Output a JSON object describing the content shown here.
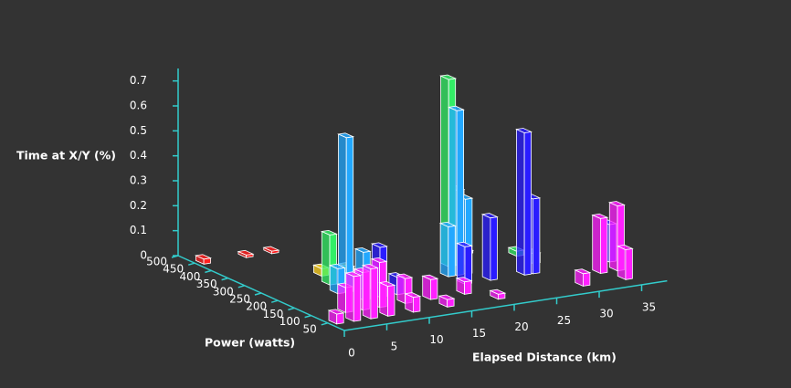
{
  "chart_data": {
    "type": "bar3d",
    "z_label": "Time at X/Y (%)",
    "y_label": "Power (watts)",
    "x_label": "Elapsed Distance (km)",
    "xlim": [
      0,
      38
    ],
    "xticks": [
      0,
      5,
      10,
      15,
      20,
      25,
      30,
      35
    ],
    "ylim": [
      0,
      500
    ],
    "yticks": [
      50,
      100,
      150,
      200,
      250,
      300,
      350,
      400,
      450,
      500
    ],
    "zlim": [
      0,
      0.75
    ],
    "zticks": [
      0,
      0.1,
      0.2,
      0.3,
      0.4,
      0.5,
      0.6,
      0.7
    ],
    "series": [
      {
        "color": "#ff2020",
        "power": 450,
        "x": [
          1,
          6,
          9
        ],
        "values": [
          0.02,
          0.01,
          0.01
        ]
      },
      {
        "color": "#ffd21e",
        "power": 300,
        "x": [
          9,
          12,
          26
        ],
        "values": [
          0.03,
          0.02,
          0.01
        ]
      },
      {
        "color": "#33ee66",
        "power": 250,
        "x": [
          8,
          10,
          22,
          23,
          30
        ],
        "values": [
          0.2,
          0.05,
          0.75,
          0.3,
          0.02
        ]
      },
      {
        "color": "#22a8ff",
        "power": 200,
        "x": [
          7,
          8,
          10,
          20,
          21,
          22,
          30
        ],
        "values": [
          0.1,
          0.62,
          0.15,
          0.2,
          0.66,
          0.3,
          0.04
        ]
      },
      {
        "color": "#2a1cff",
        "power": 150,
        "x": [
          8,
          10,
          12,
          20,
          23,
          27,
          28,
          37
        ],
        "values": [
          0.1,
          0.2,
          0.07,
          0.15,
          0.25,
          0.57,
          0.3,
          0.15
        ]
      },
      {
        "color": "#ff20ff",
        "power": 100,
        "x": [
          4,
          6,
          8,
          11,
          14,
          18,
          34,
          36
        ],
        "values": [
          0.1,
          0.15,
          0.18,
          0.1,
          0.08,
          0.05,
          0.22,
          0.26
        ]
      },
      {
        "color": "#ff20ff",
        "power": 50,
        "x": [
          1,
          3,
          5,
          7,
          10,
          14,
          20,
          30,
          35
        ],
        "values": [
          0.04,
          0.18,
          0.2,
          0.12,
          0.06,
          0.03,
          0.02,
          0.05,
          0.12
        ]
      }
    ]
  }
}
